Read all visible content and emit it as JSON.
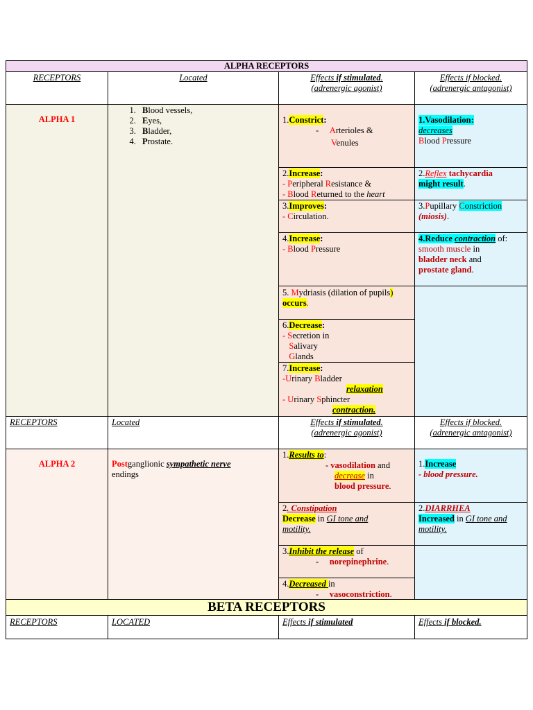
{
  "alpha_header": "ALPHA RECEPTORS",
  "beta_header": "BETA RECEPTORS",
  "col_headers": {
    "receptors": "RECEPTORS",
    "located": "Located",
    "located_caps": "LOCATED",
    "effects_stim_a": "Effects ",
    "effects_stim_b": "if stimulated",
    "effects_stim_c": ".",
    "effects_stim_sub": "(adrenergic agonist)",
    "effects_block_a": "Effects if blocked.",
    "effects_block_sub": "(adrenergic antagonist)",
    "beta_effects_stim_a": "Effects ",
    "beta_effects_stim_b": "if stimulated",
    "beta_effects_block_a": "Effects ",
    "beta_effects_block_b": "if blocked."
  },
  "alpha1": {
    "name": "ALPHA 1",
    "locations": [
      {
        "first": "B",
        "rest": "lood vessels,"
      },
      {
        "first": "E",
        "rest": "yes,"
      },
      {
        "first": "B",
        "rest": "ladder,"
      },
      {
        "first": "P",
        "rest": "rostate."
      }
    ],
    "stim": {
      "s1_num": "1.",
      "s1_hl": "Constrict",
      "s1_colon": ":",
      "s1_dash": "-",
      "s1_l1_f": "A",
      "s1_l1_r": "rterioles &",
      "s1_l2_f": "V",
      "s1_l2_r": "enules",
      "s2_num": "2.",
      "s2_hl": "Increase",
      "s2_colon": ":",
      "s2_l1_d": "- ",
      "s2_l1_f1": "P",
      "s2_l1_r1": "eripheral ",
      "s2_l1_f2": "R",
      "s2_l1_r2": "esistance &",
      "s2_l2_d": "- ",
      "s2_l2_f1": "B",
      "s2_l2_r1": "lood ",
      "s2_l2_f2": "R",
      "s2_l2_r2": "eturned to the ",
      "s2_l2_i": "heart",
      "s3_num": "3.",
      "s3_hl": "Improves",
      "s3_colon": ":",
      "s3_l1_d": "- ",
      "s3_l1_f": "C",
      "s3_l1_r": "irculation.",
      "s4_num": "4.",
      "s4_hl": "Increase",
      "s4_colon": ":",
      "s4_l1_d": "- ",
      "s4_l1_f1": "B",
      "s4_l1_r1": "lood ",
      "s4_l1_f2": "P",
      "s4_l1_r2": "ressure",
      "s5_num": "5. ",
      "s5_f": "M",
      "s5_r": "ydriasis (dilation of pupils",
      "s5_p": ")",
      "s5_hl": "occurs",
      "s5_dot": ".",
      "s6_num": "6.",
      "s6_hl": "Decrease",
      "s6_colon": ":",
      "s6_l1_d": "- ",
      "s6_l1_f": "S",
      "s6_l1_r": "ecretion in",
      "s6_l2_f": "S",
      "s6_l2_r": "alivary",
      "s6_l3_f": "G",
      "s6_l3_r": "lands",
      "s7_num": "7.",
      "s7_hl": "Increase",
      "s7_colon": ":",
      "s7_l1_d": "-",
      "s7_l1_f1": "U",
      "s7_l1_r1": "rinary ",
      "s7_l1_f2": "B",
      "s7_l1_r2": "ladder",
      "s7_l2": "relaxation",
      "s7_l3_d": "- ",
      "s7_l3_f1": "U",
      "s7_l3_r1": "rinary ",
      "s7_l3_f2": "S",
      "s7_l3_r2": "phincter",
      "s7_l4": "contraction."
    },
    "block": {
      "b1_hl": "1.Vasodilation:",
      "b1_l1": "decreases",
      "b1_l2_f1": "B",
      "b1_l2_r1": "lood ",
      "b1_l2_f2": "P",
      "b1_l2_r2": "ressure",
      "b2_num": "2.",
      "b2_i": "Reflex",
      "b2_r": " tachycardia",
      "b2_hl": "might result",
      "b2_dot": ".",
      "b3_num": "3.",
      "b3_f": "P",
      "b3_r": "upillary ",
      "b3_hl_f": "C",
      "b3_hl_r": "onstriction",
      "b3_l2": "(miosis)",
      "b3_dot": ".",
      "b4_hl": "4.Reduce ",
      "b4_hl_i": "contraction",
      "b4_of": " of:",
      "b4_l1_r": " smooth muscle",
      "b4_l1_in": " in",
      "b4_l2_r": "bladder neck",
      "b4_l2_and": " and",
      "b4_l3_r": "prostate gland",
      "b4_dot": "."
    }
  },
  "alpha2": {
    "name": "ALPHA 2",
    "loc_r": "Post",
    "loc_1": "ganglionic ",
    "loc_bi": "sympathetic nerve",
    "loc_2": "endings",
    "stim": {
      "s1_num": "1.",
      "s1_hl": "Results to",
      "s1_colon": ":",
      "s1_l1_d": "- ",
      "s1_l1_r": "vasodilation",
      "s1_l1_and": " and",
      "s1_l2_hl": "decrease",
      "s1_l2_in": " in",
      "s1_l3_r": "blood pressure",
      "s1_dot": ".",
      "s2_num": "2",
      "s2_r": ". Constipation",
      "s2_hl": " Decrease",
      "s2_in": " in ",
      "s2_i1": "GI tone and",
      "s2_i2": "motility.",
      "s3_num": "3.",
      "s3_hl": "Inhibit the release",
      "s3_of": " of",
      "s3_l1_d": "-",
      "s3_l1_r": "norepinephrine",
      "s3_dot": ".",
      "s4_num": "4.",
      "s4_hl": "Decreased ",
      "s4_in": "in",
      "s4_l1_d": "-",
      "s4_l1_r": "vasoconstriction",
      "s4_dot": "."
    },
    "block": {
      "b1_num": "1.",
      "b1_hl": "Increase",
      "b1_l1": "- blood pressure.",
      "b2_num": "2.",
      "b2_r": "DIARRHEA",
      "b2_hl": "Increased",
      "b2_in": " in ",
      "b2_i1": "GI tone and",
      "b2_i2": "motility."
    }
  }
}
